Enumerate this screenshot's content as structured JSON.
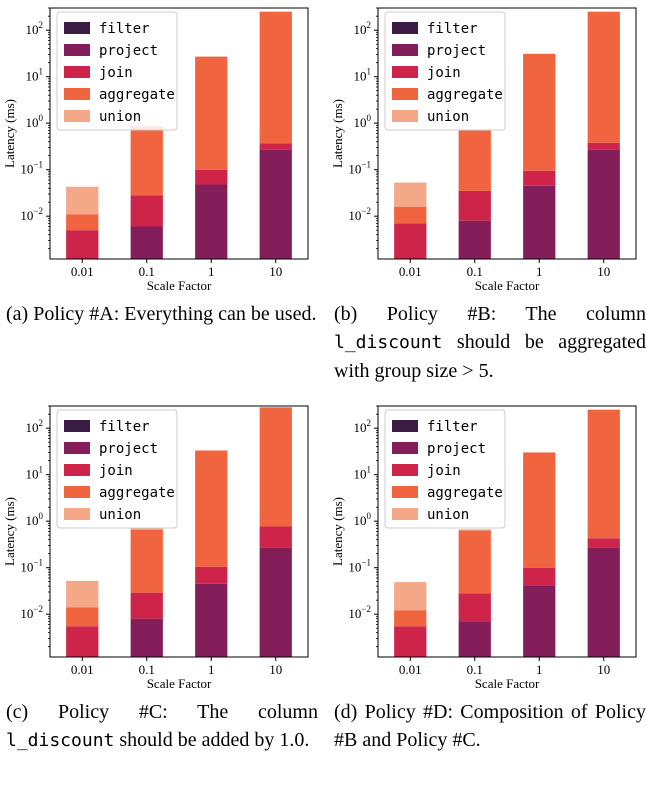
{
  "colors": {
    "filter": "#3b1c45",
    "project": "#841e5a",
    "join": "#cf2449",
    "aggregate": "#f0643f",
    "union": "#f5a888"
  },
  "chart_data": [
    {
      "id": "a",
      "type": "bar",
      "stacked": true,
      "yscale": "log",
      "ylim": [
        0.0012,
        300
      ],
      "categories": [
        "0.01",
        "0.1",
        "1",
        "10"
      ],
      "xlabel": "Scale Factor",
      "ylabel": "Latency (ms)",
      "legend_position": "top-left",
      "series": [
        {
          "name": "filter",
          "key": "filter",
          "values": [
            0,
            0,
            0,
            0
          ]
        },
        {
          "name": "project",
          "key": "project",
          "values": [
            0,
            0.006,
            0.048,
            0.27
          ]
        },
        {
          "name": "join",
          "key": "join",
          "values": [
            0.005,
            0.022,
            0.052,
            0.1
          ]
        },
        {
          "name": "aggregate",
          "key": "aggregate",
          "values": [
            0.006,
            0.83,
            26.9,
            250
          ]
        },
        {
          "name": "union",
          "key": "union",
          "values": [
            0.032,
            0,
            0,
            0
          ]
        }
      ],
      "caption_parts": [
        {
          "text": "(a) Policy #A: Everything can be used.",
          "mono": false
        }
      ]
    },
    {
      "id": "b",
      "type": "bar",
      "stacked": true,
      "yscale": "log",
      "ylim": [
        0.0012,
        300
      ],
      "categories": [
        "0.01",
        "0.1",
        "1",
        "10"
      ],
      "xlabel": "Scale Factor",
      "ylabel": "Latency (ms)",
      "legend_position": "top-left",
      "series": [
        {
          "name": "filter",
          "key": "filter",
          "values": [
            0,
            0,
            0,
            0
          ]
        },
        {
          "name": "project",
          "key": "project",
          "values": [
            0,
            0.008,
            0.045,
            0.27
          ]
        },
        {
          "name": "join",
          "key": "join",
          "values": [
            0.007,
            0.027,
            0.05,
            0.11
          ]
        },
        {
          "name": "aggregate",
          "key": "aggregate",
          "values": [
            0.009,
            0.66,
            31,
            250
          ]
        },
        {
          "name": "union",
          "key": "union",
          "values": [
            0.037,
            0.04,
            0,
            0
          ]
        }
      ],
      "caption_parts": [
        {
          "text": "(b) Policy #B: The column ",
          "mono": false
        },
        {
          "text": "l_discount",
          "mono": true
        },
        {
          "text": " should be aggregated with group size > 5.",
          "mono": false
        }
      ]
    },
    {
      "id": "c",
      "type": "bar",
      "stacked": true,
      "yscale": "log",
      "ylim": [
        0.0012,
        300
      ],
      "categories": [
        "0.01",
        "0.1",
        "1",
        "10"
      ],
      "xlabel": "Scale Factor",
      "ylabel": "Latency (ms)",
      "legend_position": "top-left",
      "series": [
        {
          "name": "filter",
          "key": "filter",
          "values": [
            0,
            0,
            0,
            0
          ]
        },
        {
          "name": "project",
          "key": "project",
          "values": [
            0,
            0.008,
            0.045,
            0.27
          ]
        },
        {
          "name": "join",
          "key": "join",
          "values": [
            0.0055,
            0.021,
            0.06,
            0.5
          ]
        },
        {
          "name": "aggregate",
          "key": "aggregate",
          "values": [
            0.0085,
            0.63,
            33,
            280
          ]
        },
        {
          "name": "union",
          "key": "union",
          "values": [
            0.038,
            0.05,
            0,
            0
          ]
        }
      ],
      "caption_parts": [
        {
          "text": "(c) Policy #C: The column ",
          "mono": false
        },
        {
          "text": "l_discount",
          "mono": true
        },
        {
          "text": " should be added by 1.0.",
          "mono": false
        }
      ]
    },
    {
      "id": "d",
      "type": "bar",
      "stacked": true,
      "yscale": "log",
      "ylim": [
        0.0012,
        300
      ],
      "categories": [
        "0.01",
        "0.1",
        "1",
        "10"
      ],
      "xlabel": "Scale Factor",
      "ylabel": "Latency (ms)",
      "legend_position": "top-left",
      "series": [
        {
          "name": "filter",
          "key": "filter",
          "values": [
            0,
            0,
            0,
            0
          ]
        },
        {
          "name": "project",
          "key": "project",
          "values": [
            0,
            0.007,
            0.042,
            0.27
          ]
        },
        {
          "name": "join",
          "key": "join",
          "values": [
            0.0055,
            0.021,
            0.058,
            0.16
          ]
        },
        {
          "name": "aggregate",
          "key": "aggregate",
          "values": [
            0.0065,
            0.6,
            30,
            250
          ]
        },
        {
          "name": "union",
          "key": "union",
          "values": [
            0.037,
            0.04,
            0,
            0
          ]
        }
      ],
      "caption_parts": [
        {
          "text": "(d) Policy #D: Composition of Policy #B and Policy #C.",
          "mono": false
        }
      ]
    }
  ]
}
